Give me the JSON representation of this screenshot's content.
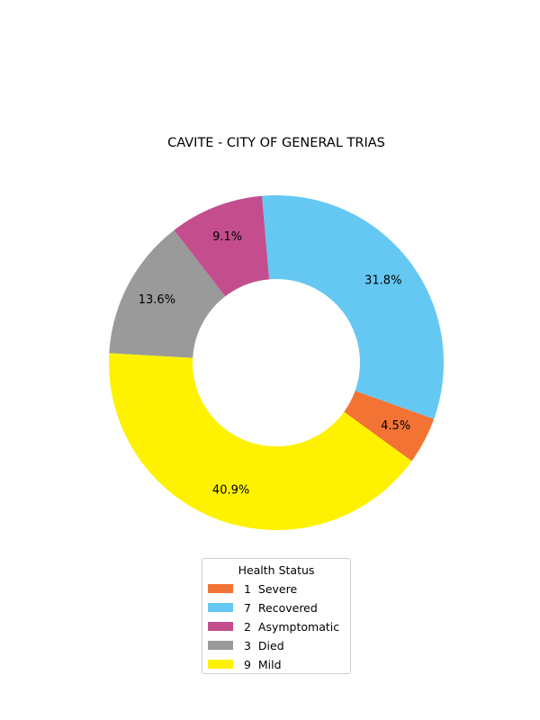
{
  "chart_data": {
    "type": "pie",
    "title": "CAVITE - CITY OF GENERAL TRIAS",
    "donut": true,
    "slices": [
      {
        "label": "1  Severe",
        "value": 1,
        "percent_label": "4.5%",
        "color": "#f37335"
      },
      {
        "label": "7  Recovered",
        "value": 7,
        "percent_label": "31.8%",
        "color": "#65c8f3"
      },
      {
        "label": "2  Asymptomatic",
        "value": 2,
        "percent_label": "9.1%",
        "color": "#c44e8d"
      },
      {
        "label": "3  Died",
        "value": 3,
        "percent_label": "13.6%",
        "color": "#9a9a9a"
      },
      {
        "label": "9  Mild",
        "value": 9,
        "percent_label": "40.9%",
        "color": "#fef200"
      }
    ],
    "legend": {
      "title": "Health Status",
      "placement": "bottom-center"
    }
  }
}
